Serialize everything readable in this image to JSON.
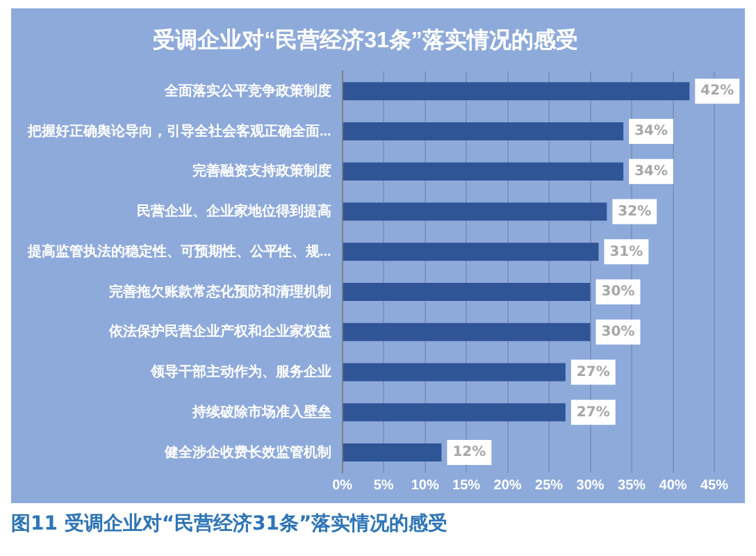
{
  "chart_data": {
    "type": "bar",
    "orientation": "horizontal",
    "title": "受调企业对“民营经济31条”落实情况的感受",
    "categories": [
      "全面落实公平竞争政策制度",
      "把握好正确舆论导向，引导全社会客观正确全面...",
      "完善融资支持政策制度",
      "民营企业、企业家地位得到提高",
      "提高监管执法的稳定性、可预期性、公平性、规...",
      "完善拖欠账款常态化预防和清理机制",
      "依法保护民营企业产权和企业家权益",
      "领导干部主动作为、服务企业",
      "持续破除市场准入壁垒",
      "健全涉企收费长效监管机制"
    ],
    "values": [
      42,
      34,
      34,
      32,
      31,
      30,
      30,
      27,
      27,
      12
    ],
    "value_labels": [
      "42%",
      "34%",
      "34%",
      "32%",
      "31%",
      "30%",
      "30%",
      "27%",
      "27%",
      "12%"
    ],
    "color": "#2f5597",
    "xlim": [
      0,
      45
    ],
    "xticks": [
      {
        "value": 0,
        "label": "0%"
      },
      {
        "value": 5,
        "label": "5%"
      },
      {
        "value": 10,
        "label": "10%"
      },
      {
        "value": 15,
        "label": "15%"
      },
      {
        "value": 20,
        "label": "20%"
      },
      {
        "value": 25,
        "label": "25%"
      },
      {
        "value": 30,
        "label": "30%"
      },
      {
        "value": 35,
        "label": "35%"
      },
      {
        "value": 40,
        "label": "40%"
      },
      {
        "value": 45,
        "label": "45%"
      }
    ],
    "grid": "x",
    "legend": false,
    "annotations": [
      "图11 受调企业对“民营经济31条”落实情况的感受"
    ]
  }
}
